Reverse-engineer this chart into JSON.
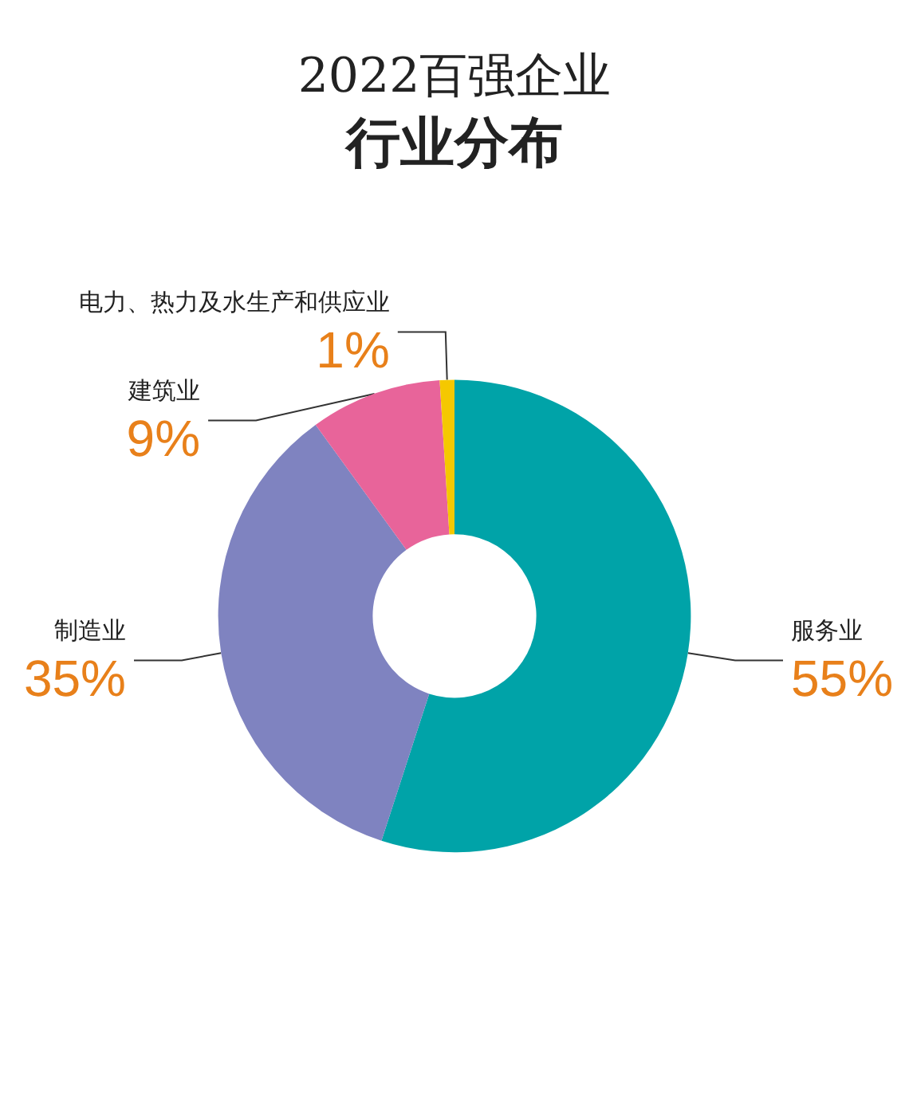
{
  "chart_data": {
    "type": "donut",
    "title": "2022百强企业",
    "subtitle": "行业分布",
    "categories": [
      "服务业",
      "制造业",
      "建筑业",
      "电力、热力及水生产和供应业"
    ],
    "values": [
      55,
      35,
      9,
      1
    ],
    "value_labels": [
      "55%",
      "35%",
      "9%",
      "1%"
    ],
    "colors": [
      "#00a3a8",
      "#7f83c0",
      "#e8649a",
      "#f5c800"
    ],
    "legend": false
  }
}
